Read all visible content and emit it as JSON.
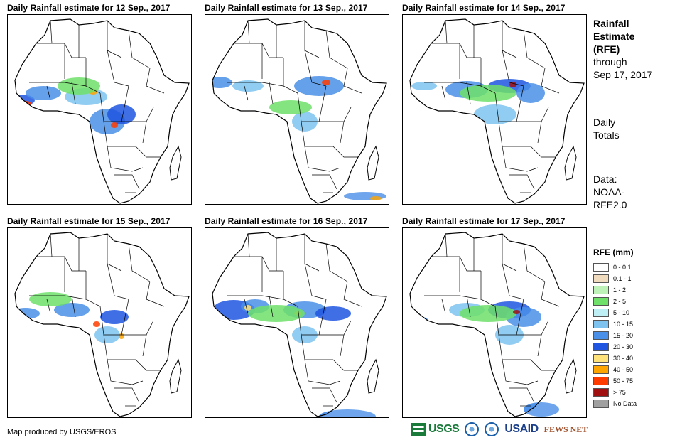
{
  "panels": [
    {
      "title": "Daily Rainfall estimate for 12 Sep., 2017"
    },
    {
      "title": "Daily Rainfall estimate for 13 Sep., 2017"
    },
    {
      "title": "Daily Rainfall estimate for 14 Sep., 2017"
    },
    {
      "title": "Daily Rainfall estimate for 15 Sep., 2017"
    },
    {
      "title": "Daily Rainfall estimate for 16 Sep., 2017"
    },
    {
      "title": "Daily Rainfall estimate for 17 Sep., 2017"
    }
  ],
  "side": {
    "line1": "Rainfall",
    "line2": "Estimate",
    "line3": "(RFE)",
    "line4": "through",
    "line5": "Sep 17, 2017",
    "daily1": "Daily",
    "daily2": "Totals",
    "data1": "Data:",
    "data2": "NOAA-",
    "data3": "RFE2.0"
  },
  "legend": {
    "title": "RFE (mm)",
    "items": [
      {
        "label": "0 - 0.1",
        "color": "#ffffff"
      },
      {
        "label": "0.1 - 1",
        "color": "#f2dcc0"
      },
      {
        "label": "1 - 2",
        "color": "#bff2b8"
      },
      {
        "label": "2 - 5",
        "color": "#6fe06a"
      },
      {
        "label": "5 - 10",
        "color": "#bdeff5"
      },
      {
        "label": "10 - 15",
        "color": "#7ec3f0"
      },
      {
        "label": "15 - 20",
        "color": "#4a8fe8"
      },
      {
        "label": "20 - 30",
        "color": "#1f55e0"
      },
      {
        "label": "30 - 40",
        "color": "#ffe27a"
      },
      {
        "label": "40 - 50",
        "color": "#ffa500"
      },
      {
        "label": "50 - 75",
        "color": "#ff3c00"
      },
      {
        "label": "> 75",
        "color": "#a01010"
      },
      {
        "label": "No Data",
        "color": "#a0a0a0"
      }
    ]
  },
  "credit": "Map produced by USGS/EROS",
  "logos": {
    "usgs": "USGS",
    "usaid": "USAID",
    "fews": "FEWS NET"
  }
}
